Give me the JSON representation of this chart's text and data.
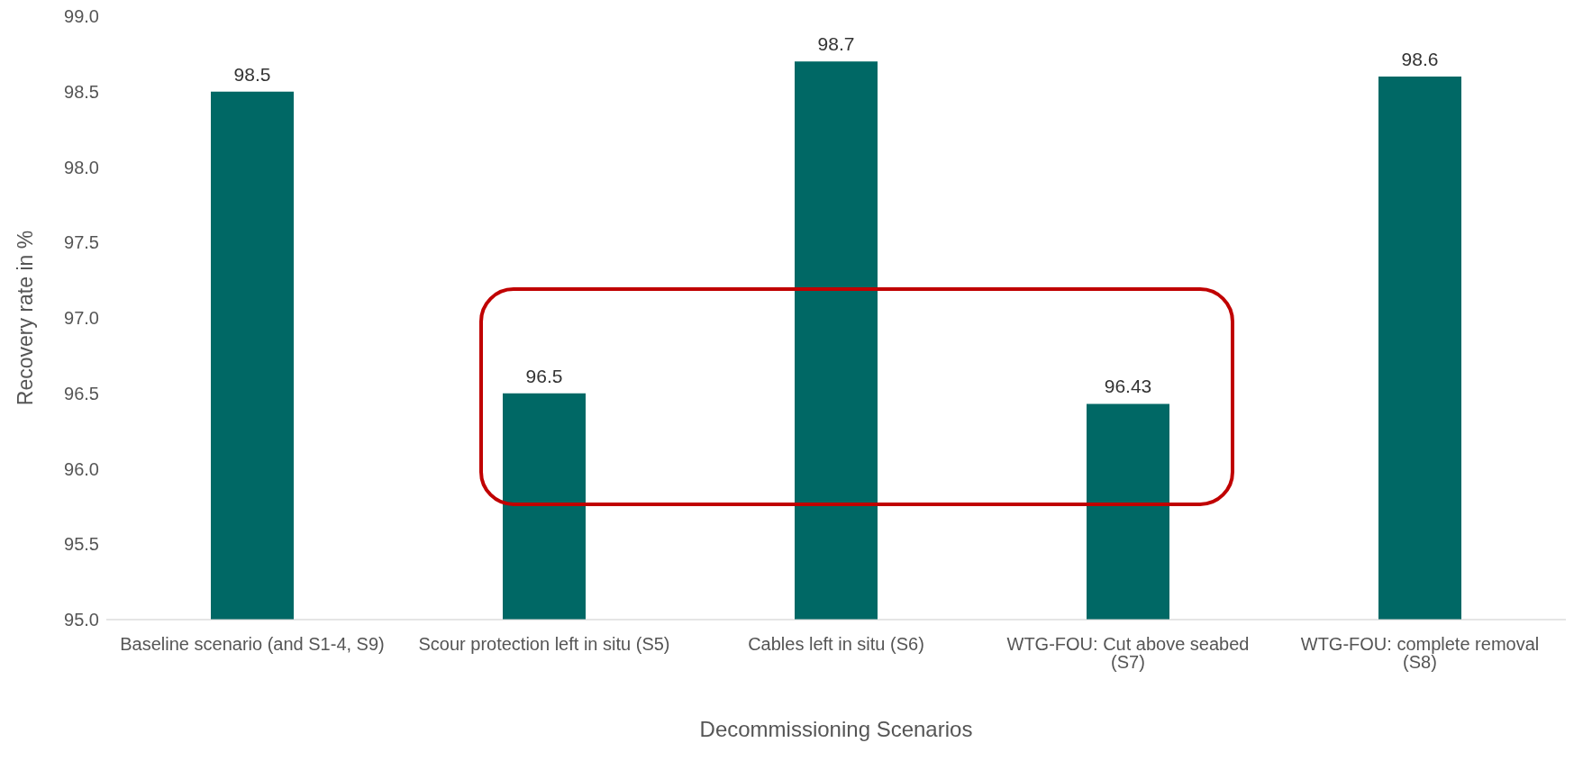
{
  "chart_data": {
    "type": "bar",
    "xlabel": "Decommissioning Scenarios",
    "ylabel": "Recovery rate in %",
    "categories": [
      "Baseline scenario (and S1-4, S9)",
      "Scour protection left in situ (S5)",
      "Cables left in situ (S6)",
      "WTG-FOU: Cut above seabed (S7)",
      "WTG-FOU: complete removal (S8)"
    ],
    "values": [
      98.5,
      96.5,
      98.7,
      96.43,
      98.6
    ],
    "color": "#006865",
    "ylim": [
      95,
      99
    ],
    "yticks": [
      {
        "value": 95,
        "label": "95.0"
      },
      {
        "value": 95.5,
        "label": "95.5"
      },
      {
        "value": 96,
        "label": "96.0"
      },
      {
        "value": 96.5,
        "label": "96.5"
      },
      {
        "value": 97,
        "label": "97.0"
      },
      {
        "value": 97.5,
        "label": "97.5"
      },
      {
        "value": 98,
        "label": "98.0"
      },
      {
        "value": 98.5,
        "label": "98.5"
      },
      {
        "value": 99,
        "label": "99.0"
      }
    ],
    "grid": false,
    "legend": false,
    "data_labels": true
  }
}
